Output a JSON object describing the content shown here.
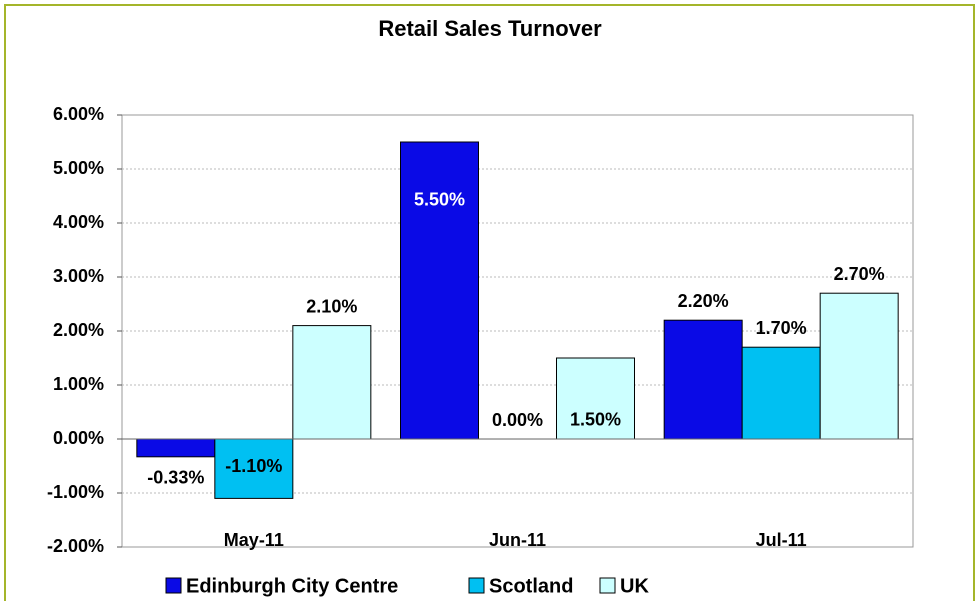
{
  "chart_data": {
    "type": "bar",
    "title": "Retail Sales Turnover",
    "categories": [
      "May-11",
      "Jun-11",
      "Jul-11"
    ],
    "series": [
      {
        "name": "Edinburgh City Centre",
        "color": "#0a0ae6",
        "values": [
          -0.33,
          5.5,
          2.2
        ],
        "value_labels": [
          "-0.33%",
          "5.50%",
          "2.20%"
        ]
      },
      {
        "name": "Scotland",
        "color": "#00c0f2",
        "values": [
          -1.1,
          0,
          1.7
        ],
        "value_labels": [
          "-1.10%",
          "0.00%",
          "1.70%"
        ]
      },
      {
        "name": "UK",
        "color": "#ccffff",
        "values": [
          2.1,
          1.5,
          2.7
        ],
        "value_labels": [
          "2.10%",
          "1.50%",
          "2.70%"
        ]
      }
    ],
    "ylim": [
      -2,
      6
    ],
    "yticks": [
      {
        "value": -2,
        "label": "-2.00%"
      },
      {
        "value": -1,
        "label": "-1.00%"
      },
      {
        "value": 0,
        "label": "0.00%"
      },
      {
        "value": 1,
        "label": "1.00%"
      },
      {
        "value": 2,
        "label": "2.00%"
      },
      {
        "value": 3,
        "label": "3.00%"
      },
      {
        "value": 4,
        "label": "4.00%"
      },
      {
        "value": 5,
        "label": "5.00%"
      },
      {
        "value": 6,
        "label": "6.00%"
      }
    ],
    "grid": true,
    "legend": "bottom"
  }
}
